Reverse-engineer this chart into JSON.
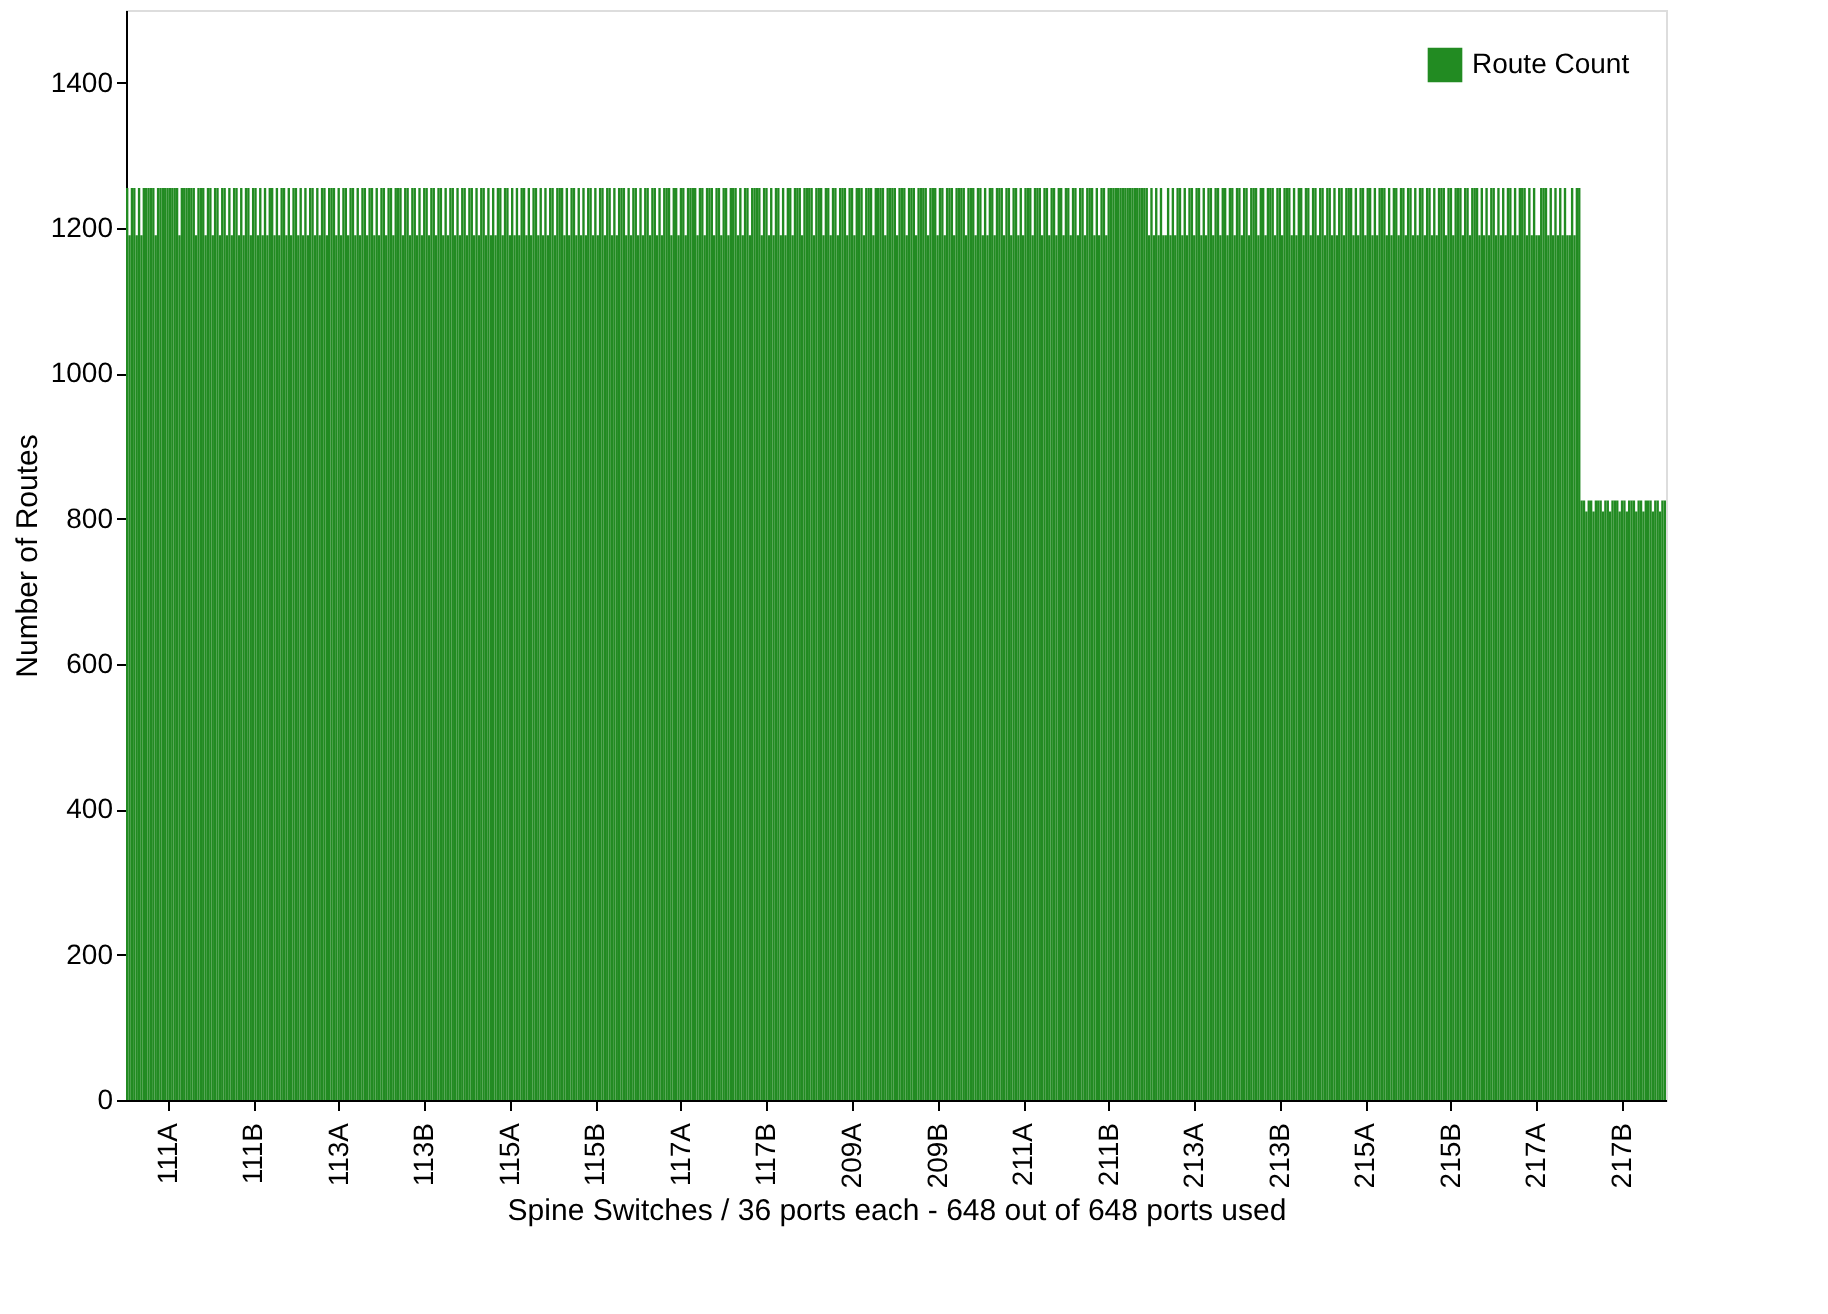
{
  "chart_data": {
    "type": "bar",
    "xlabel": "Spine Switches / 36 ports each - 648 out of 648 ports used",
    "ylabel": "Number of Routes",
    "ylim": [
      0,
      1500
    ],
    "yticks": [
      0,
      200,
      400,
      600,
      800,
      1000,
      1200,
      1400
    ],
    "legend": "top right",
    "grid": false,
    "categories": [
      null,
      null,
      null,
      null,
      null,
      null,
      null,
      null,
      null,
      null,
      null,
      null,
      null,
      null,
      null,
      null,
      null,
      "111A",
      null,
      null,
      null,
      null,
      null,
      null,
      null,
      null,
      null,
      null,
      null,
      null,
      null,
      null,
      null,
      null,
      null,
      null,
      null,
      null,
      null,
      null,
      null,
      null,
      null,
      null,
      null,
      null,
      null,
      null,
      null,
      null,
      null,
      null,
      null,
      "111B",
      null,
      null,
      null,
      null,
      null,
      null,
      null,
      null,
      null,
      null,
      null,
      null,
      null,
      null,
      null,
      null,
      null,
      null,
      null,
      null,
      null,
      null,
      null,
      null,
      null,
      null,
      null,
      null,
      null,
      null,
      null,
      null,
      null,
      null,
      null,
      "113A",
      null,
      null,
      null,
      null,
      null,
      null,
      null,
      null,
      null,
      null,
      null,
      null,
      null,
      null,
      null,
      null,
      null,
      null,
      null,
      null,
      null,
      null,
      null,
      null,
      null,
      null,
      null,
      null,
      null,
      null,
      null,
      null,
      null,
      null,
      null,
      "113B",
      null,
      null,
      null,
      null,
      null,
      null,
      null,
      null,
      null,
      null,
      null,
      null,
      null,
      null,
      null,
      null,
      null,
      null,
      null,
      null,
      null,
      null,
      null,
      null,
      null,
      null,
      null,
      null,
      null,
      null,
      null,
      null,
      null,
      null,
      null,
      "115A",
      null,
      null,
      null,
      null,
      null,
      null,
      null,
      null,
      null,
      null,
      null,
      null,
      null,
      null,
      null,
      null,
      null,
      null,
      null,
      null,
      null,
      null,
      null,
      null,
      null,
      null,
      null,
      null,
      null,
      null,
      null,
      null,
      null,
      null,
      null,
      "115B",
      null,
      null,
      null,
      null,
      null,
      null,
      null,
      null,
      null,
      null,
      null,
      null,
      null,
      null,
      null,
      null,
      null,
      null,
      null,
      null,
      null,
      null,
      null,
      null,
      null,
      null,
      null,
      null,
      null,
      null,
      null,
      null,
      null,
      null,
      null,
      "117A",
      null,
      null,
      null,
      null,
      null,
      null,
      null,
      null,
      null,
      null,
      null,
      null,
      null,
      null,
      null,
      null,
      null,
      null,
      null,
      null,
      null,
      null,
      null,
      null,
      null,
      null,
      null,
      null,
      null,
      null,
      null,
      null,
      null,
      null,
      null,
      "117B",
      null,
      null,
      null,
      null,
      null,
      null,
      null,
      null,
      null,
      null,
      null,
      null,
      null,
      null,
      null,
      null,
      null,
      null,
      null,
      null,
      null,
      null,
      null,
      null,
      null,
      null,
      null,
      null,
      null,
      null,
      null,
      null,
      null,
      null,
      null,
      "209A",
      null,
      null,
      null,
      null,
      null,
      null,
      null,
      null,
      null,
      null,
      null,
      null,
      null,
      null,
      null,
      null,
      null,
      null,
      null,
      null,
      null,
      null,
      null,
      null,
      null,
      null,
      null,
      null,
      null,
      null,
      null,
      null,
      null,
      null,
      null,
      "209B",
      null,
      null,
      null,
      null,
      null,
      null,
      null,
      null,
      null,
      null,
      null,
      null,
      null,
      null,
      null,
      null,
      null,
      null,
      null,
      null,
      null,
      null,
      null,
      null,
      null,
      null,
      null,
      null,
      null,
      null,
      null,
      null,
      null,
      null,
      null,
      "211A",
      null,
      null,
      null,
      null,
      null,
      null,
      null,
      null,
      null,
      null,
      null,
      null,
      null,
      null,
      null,
      null,
      null,
      null,
      null,
      null,
      null,
      null,
      null,
      null,
      null,
      null,
      null,
      null,
      null,
      null,
      null,
      null,
      null,
      null,
      null,
      "211B",
      null,
      null,
      null,
      null,
      null,
      null,
      null,
      null,
      null,
      null,
      null,
      null,
      null,
      null,
      null,
      null,
      null,
      null,
      null,
      null,
      null,
      null,
      null,
      null,
      null,
      null,
      null,
      null,
      null,
      null,
      null,
      null,
      null,
      null,
      null,
      "213A",
      null,
      null,
      null,
      null,
      null,
      null,
      null,
      null,
      null,
      null,
      null,
      null,
      null,
      null,
      null,
      null,
      null,
      null,
      null,
      null,
      null,
      null,
      null,
      null,
      null,
      null,
      null,
      null,
      null,
      null,
      null,
      null,
      null,
      null,
      null,
      "213B",
      null,
      null,
      null,
      null,
      null,
      null,
      null,
      null,
      null,
      null,
      null,
      null,
      null,
      null,
      null,
      null,
      null,
      null,
      null,
      null,
      null,
      null,
      null,
      null,
      null,
      null,
      null,
      null,
      null,
      null,
      null,
      null,
      null,
      null,
      null,
      "215A",
      null,
      null,
      null,
      null,
      null,
      null,
      null,
      null,
      null,
      null,
      null,
      null,
      null,
      null,
      null,
      null,
      null,
      null,
      null,
      null,
      null,
      null,
      null,
      null,
      null,
      null,
      null,
      null,
      null,
      null,
      null,
      null,
      null,
      null,
      null,
      "215B",
      null,
      null,
      null,
      null,
      null,
      null,
      null,
      null,
      null,
      null,
      null,
      null,
      null,
      null,
      null,
      null,
      null,
      null,
      null,
      null,
      null,
      null,
      null,
      null,
      null,
      null,
      null,
      null,
      null,
      null,
      null,
      null,
      null,
      null,
      null,
      "217A",
      null,
      null,
      null,
      null,
      null,
      null,
      null,
      null,
      null,
      null,
      null,
      null,
      null,
      null,
      null,
      null,
      null,
      null,
      null,
      null,
      null,
      null,
      null,
      null,
      null,
      null,
      null,
      null,
      null,
      null,
      null,
      null,
      null,
      null,
      null,
      "217B",
      null,
      null,
      null,
      null,
      null,
      null,
      null,
      null,
      null,
      null,
      null,
      null,
      null,
      null,
      null,
      null,
      null,
      null
    ],
    "series": [
      {
        "name": "Route Count",
        "color": "#228b22",
        "values": [
          1255,
          1190,
          1255,
          1255,
          1190,
          1255,
          1190,
          1255,
          1255,
          1255,
          1255,
          1255,
          1190,
          1255,
          1255,
          1255,
          1255,
          1255,
          1255,
          1255,
          1255,
          1255,
          1190,
          1255,
          1255,
          1255,
          1255,
          1255,
          1255,
          1190,
          1255,
          1255,
          1255,
          1190,
          1255,
          1255,
          1190,
          1255,
          1255,
          1190,
          1255,
          1255,
          1190,
          1255,
          1190,
          1255,
          1255,
          1190,
          1255,
          1190,
          1255,
          1255,
          1190,
          1255,
          1255,
          1190,
          1255,
          1190,
          1255,
          1190,
          1255,
          1255,
          1190,
          1255,
          1190,
          1255,
          1255,
          1190,
          1255,
          1190,
          1255,
          1255,
          1190,
          1255,
          1190,
          1255,
          1190,
          1255,
          1255,
          1190,
          1255,
          1190,
          1255,
          1255,
          1190,
          1255,
          1255,
          1255,
          1190,
          1255,
          1190,
          1255,
          1255,
          1190,
          1255,
          1255,
          1190,
          1255,
          1190,
          1255,
          1255,
          1190,
          1255,
          1255,
          1190,
          1255,
          1190,
          1255,
          1255,
          1190,
          1255,
          1255,
          1190,
          1255,
          1255,
          1255,
          1190,
          1255,
          1255,
          1190,
          1255,
          1255,
          1190,
          1255,
          1190,
          1255,
          1255,
          1190,
          1255,
          1255,
          1190,
          1255,
          1255,
          1190,
          1255,
          1190,
          1255,
          1255,
          1190,
          1255,
          1190,
          1255,
          1255,
          1190,
          1255,
          1255,
          1190,
          1255,
          1190,
          1255,
          1255,
          1190,
          1255,
          1190,
          1255,
          1190,
          1255,
          1255,
          1190,
          1255,
          1255,
          1190,
          1255,
          1190,
          1255,
          1190,
          1255,
          1255,
          1190,
          1255,
          1190,
          1255,
          1255,
          1190,
          1255,
          1190,
          1255,
          1190,
          1255,
          1255,
          1190,
          1255,
          1255,
          1255,
          1190,
          1255,
          1190,
          1255,
          1255,
          1190,
          1255,
          1190,
          1255,
          1190,
          1255,
          1255,
          1190,
          1255,
          1190,
          1255,
          1255,
          1190,
          1255,
          1255,
          1190,
          1255,
          1190,
          1255,
          1255,
          1255,
          1190,
          1255,
          1190,
          1255,
          1255,
          1190,
          1255,
          1190,
          1255,
          1255,
          1190,
          1255,
          1255,
          1190,
          1255,
          1190,
          1255,
          1255,
          1255,
          1190,
          1255,
          1255,
          1190,
          1255,
          1255,
          1190,
          1255,
          1255,
          1255,
          1255,
          1190,
          1255,
          1255,
          1190,
          1255,
          1255,
          1255,
          1190,
          1255,
          1255,
          1190,
          1255,
          1255,
          1190,
          1255,
          1255,
          1255,
          1190,
          1255,
          1190,
          1255,
          1255,
          1190,
          1255,
          1255,
          1255,
          1255,
          1190,
          1255,
          1255,
          1190,
          1255,
          1190,
          1255,
          1255,
          1190,
          1255,
          1190,
          1255,
          1255,
          1190,
          1255,
          1255,
          1255,
          1190,
          1255,
          1255,
          1255,
          1255,
          1190,
          1255,
          1255,
          1255,
          1190,
          1255,
          1255,
          1190,
          1255,
          1255,
          1190,
          1255,
          1255,
          1255,
          1190,
          1255,
          1255,
          1190,
          1255,
          1255,
          1255,
          1190,
          1255,
          1255,
          1255,
          1190,
          1255,
          1255,
          1255,
          1255,
          1190,
          1255,
          1255,
          1255,
          1255,
          1190,
          1255,
          1255,
          1255,
          1190,
          1255,
          1255,
          1255,
          1190,
          1255,
          1255,
          1255,
          1255,
          1190,
          1255,
          1255,
          1255,
          1190,
          1255,
          1255,
          1190,
          1255,
          1255,
          1255,
          1190,
          1255,
          1255,
          1255,
          1255,
          1190,
          1255,
          1255,
          1255,
          1190,
          1255,
          1255,
          1190,
          1255,
          1190,
          1255,
          1255,
          1190,
          1255,
          1255,
          1255,
          1190,
          1255,
          1255,
          1190,
          1255,
          1255,
          1190,
          1255,
          1190,
          1255,
          1255,
          1255,
          1190,
          1255,
          1255,
          1255,
          1190,
          1255,
          1255,
          1190,
          1255,
          1255,
          1190,
          1255,
          1255,
          1190,
          1255,
          1255,
          1190,
          1255,
          1255,
          1190,
          1255,
          1255,
          1190,
          1255,
          1255,
          1255,
          1190,
          1255,
          1190,
          1255,
          1255,
          1190,
          1255,
          1255,
          1255,
          1255,
          1255,
          1255,
          1255,
          1255,
          1255,
          1255,
          1255,
          1255,
          1255,
          1255,
          1255,
          1255,
          1255,
          1190,
          1255,
          1190,
          1255,
          1190,
          1255,
          1190,
          1190,
          1255,
          1190,
          1255,
          1190,
          1255,
          1255,
          1190,
          1255,
          1190,
          1255,
          1255,
          1190,
          1255,
          1255,
          1190,
          1255,
          1190,
          1255,
          1255,
          1190,
          1255,
          1255,
          1190,
          1255,
          1255,
          1190,
          1255,
          1255,
          1190,
          1255,
          1255,
          1190,
          1255,
          1255,
          1190,
          1255,
          1255,
          1255,
          1190,
          1255,
          1255,
          1190,
          1255,
          1255,
          1255,
          1190,
          1255,
          1255,
          1190,
          1255,
          1255,
          1255,
          1190,
          1255,
          1190,
          1255,
          1255,
          1190,
          1255,
          1255,
          1190,
          1255,
          1255,
          1190,
          1255,
          1255,
          1190,
          1255,
          1255,
          1190,
          1255,
          1190,
          1255,
          1255,
          1190,
          1255,
          1255,
          1255,
          1190,
          1255,
          1190,
          1255,
          1255,
          1190,
          1255,
          1255,
          1190,
          1255,
          1190,
          1255,
          1255,
          1255,
          1190,
          1255,
          1190,
          1255,
          1255,
          1190,
          1255,
          1255,
          1190,
          1255,
          1255,
          1190,
          1255,
          1190,
          1255,
          1255,
          1190,
          1255,
          1255,
          1190,
          1255,
          1190,
          1255,
          1255,
          1255,
          1190,
          1255,
          1255,
          1190,
          1255,
          1255,
          1255,
          1190,
          1255,
          1255,
          1190,
          1255,
          1255,
          1255,
          1190,
          1255,
          1190,
          1255,
          1190,
          1255,
          1255,
          1190,
          1255,
          1190,
          1255,
          1190,
          1255,
          1255,
          1190,
          1255,
          1190,
          1255,
          1255,
          1255,
          1190,
          1255,
          1190,
          1255,
          1190,
          1190,
          1255,
          1255,
          1255,
          1190,
          1255,
          1190,
          1255,
          1190,
          1255,
          1190,
          1255,
          1190,
          1190,
          1255,
          1190,
          1255,
          1255,
          825,
          825,
          810,
          825,
          825,
          810,
          825,
          825,
          825,
          810,
          825,
          825,
          810,
          825,
          825,
          825,
          810,
          825,
          825,
          810,
          825,
          825,
          825,
          810,
          825,
          825,
          810,
          825,
          825,
          825,
          810,
          825,
          825,
          810,
          825,
          825
        ]
      }
    ]
  }
}
